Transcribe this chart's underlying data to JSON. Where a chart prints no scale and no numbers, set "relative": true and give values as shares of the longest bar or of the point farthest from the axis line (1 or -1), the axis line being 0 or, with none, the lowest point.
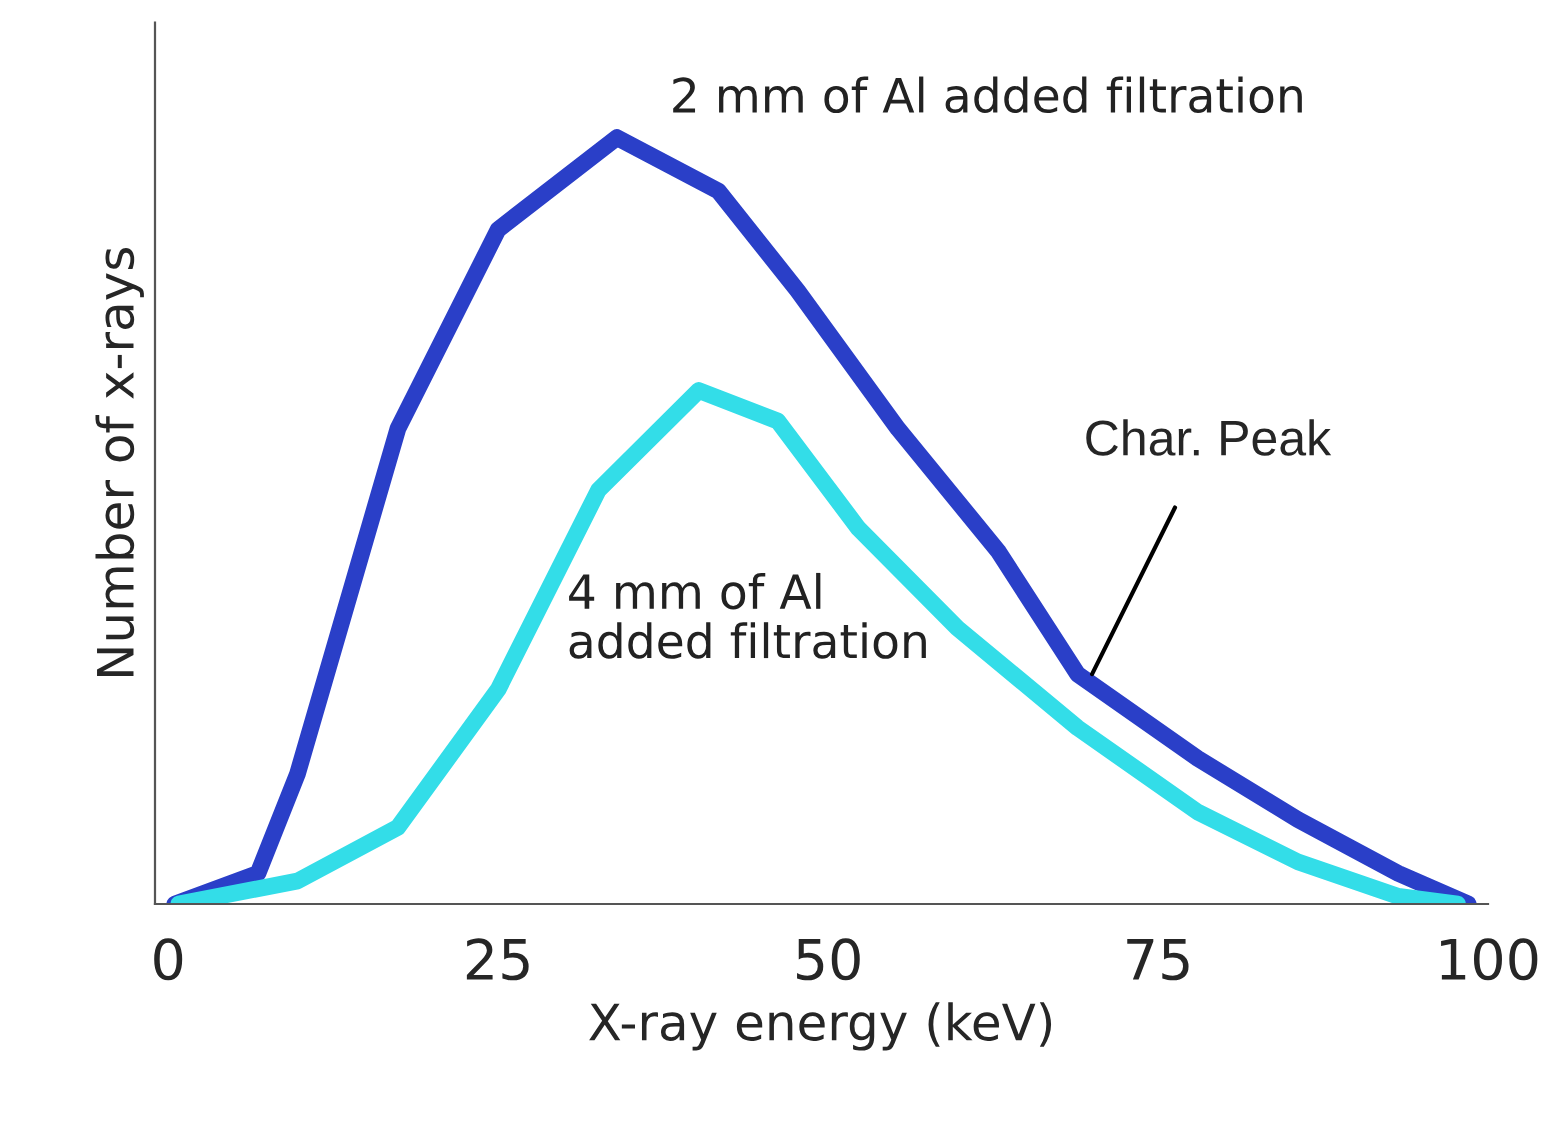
{
  "chart_data": {
    "type": "line",
    "relative": true,
    "xlabel": "X-ray energy (keV)",
    "ylabel": "Number of x-rays",
    "xlim": [
      -1,
      100
    ],
    "xticks": [
      0,
      25,
      50,
      75,
      100
    ],
    "grid": false,
    "legend": false,
    "marker": "none",
    "line_style": "solid",
    "series": [
      {
        "name": "2 mm of Al added filtration",
        "color": "#2a3fc8",
        "x": [
          0.5,
          6.8,
          9.8,
          17.4,
          25,
          34,
          41.7,
          47.7,
          55.3,
          62.9,
          68.9,
          78,
          85.6,
          93.2,
          98.5
        ],
        "values": [
          0,
          0.04,
          0.17,
          0.62,
          0.88,
          1.0,
          0.93,
          0.8,
          0.62,
          0.46,
          0.3,
          0.19,
          0.11,
          0.04,
          0
        ]
      },
      {
        "name": "4 mm of Al\nadded filtration",
        "color": "#33dde8",
        "x": [
          0.8,
          9.8,
          17.4,
          25,
          32.6,
          40.2,
          46.2,
          52.3,
          59.8,
          68.9,
          78,
          85.6,
          93.2,
          97.7
        ],
        "values": [
          0,
          0.03,
          0.1,
          0.28,
          0.54,
          0.67,
          0.63,
          0.49,
          0.36,
          0.23,
          0.12,
          0.055,
          0.01,
          0
        ]
      }
    ],
    "annotations": [
      {
        "text": "Char. Peak",
        "x": 70,
        "y": 0.3
      }
    ]
  }
}
